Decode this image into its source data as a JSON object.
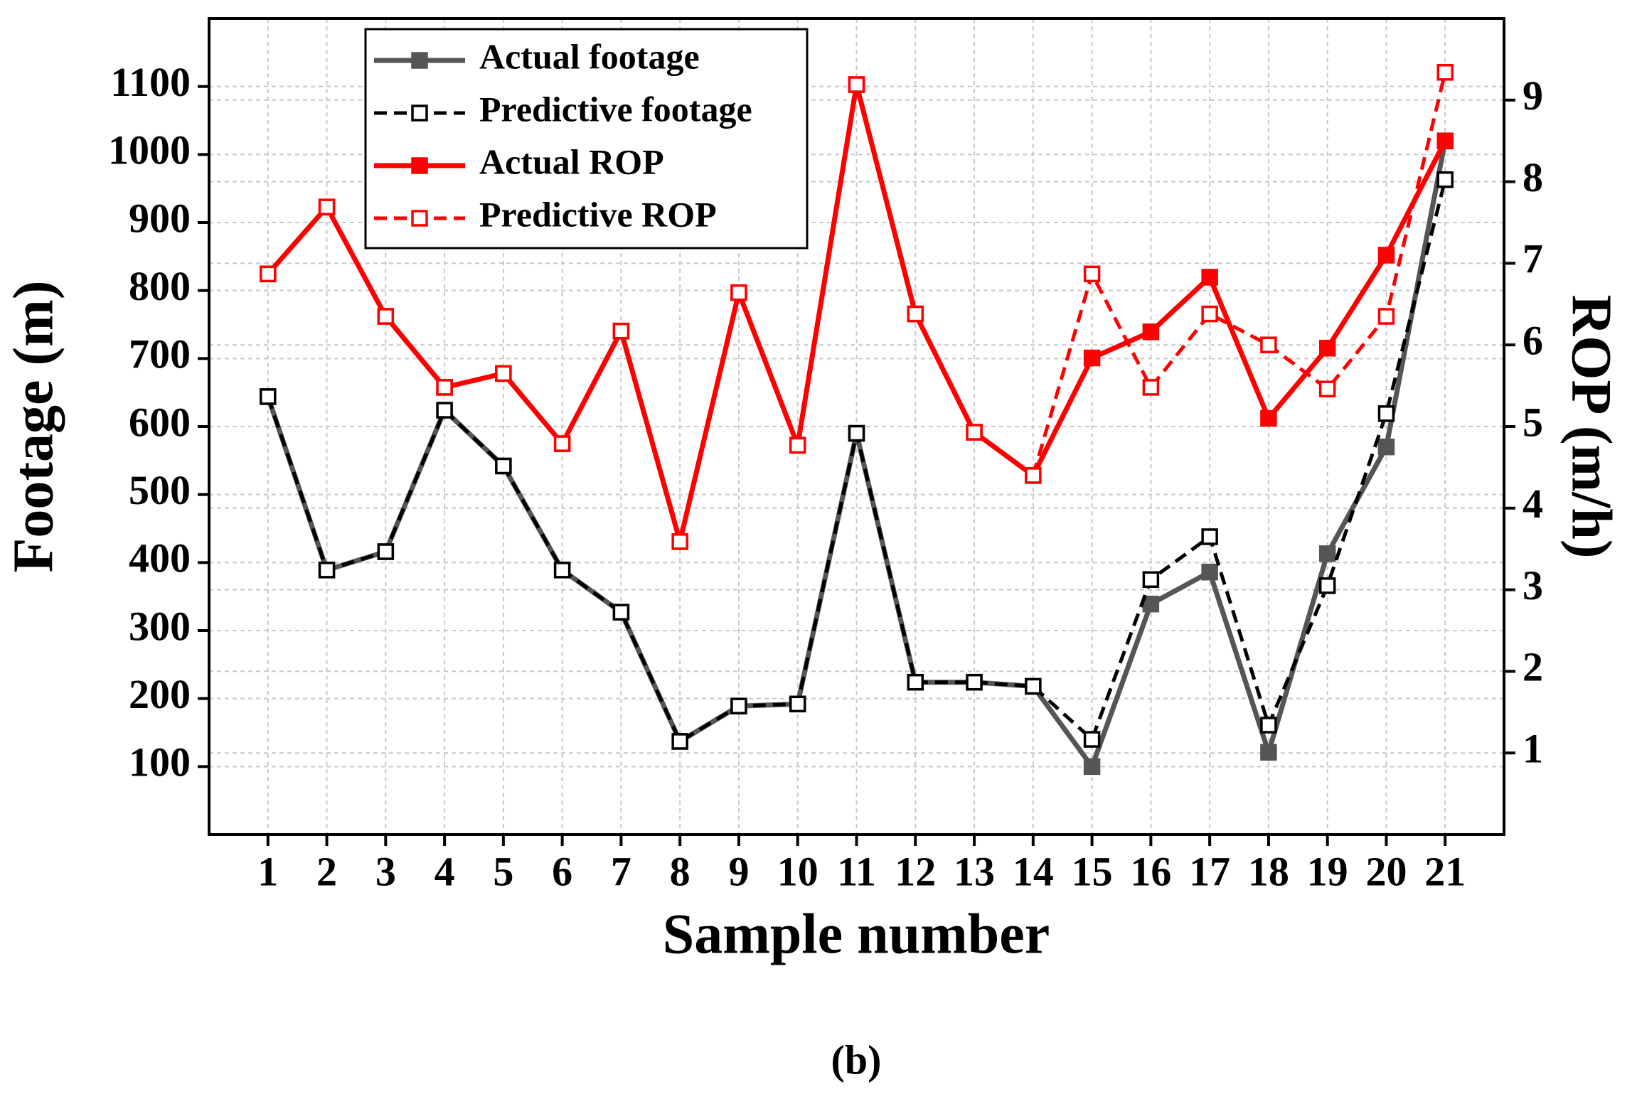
{
  "chart_data": {
    "type": "line",
    "x_label": "Sample number",
    "y_label": "Footage (m)",
    "y2_label": "ROP (m/h)",
    "caption": "(b)",
    "x": [
      1,
      2,
      3,
      4,
      5,
      6,
      7,
      8,
      9,
      10,
      11,
      12,
      13,
      14,
      15,
      16,
      17,
      18,
      19,
      20,
      21
    ],
    "xlim": [
      0,
      22
    ],
    "xticks": [
      1,
      2,
      3,
      4,
      5,
      6,
      7,
      8,
      9,
      10,
      11,
      12,
      13,
      14,
      15,
      16,
      17,
      18,
      19,
      20,
      21
    ],
    "ylim": [
      0,
      1200
    ],
    "yticks": [
      100,
      200,
      300,
      400,
      500,
      600,
      700,
      800,
      900,
      1000,
      1100
    ],
    "y2lim": [
      0,
      10
    ],
    "y2ticks": [
      1,
      2,
      3,
      4,
      5,
      6,
      7,
      8,
      9
    ],
    "y2_color": "#ff0000",
    "grid": true,
    "legend": "upper-left",
    "series": [
      {
        "name": "Actual footage",
        "color": "#555555",
        "line_style": "solid",
        "marker_fill": true,
        "values": [
          644,
          389,
          416,
          624,
          542,
          389,
          327,
          137,
          189,
          192,
          590,
          224,
          224,
          218,
          100,
          339,
          386,
          121,
          413,
          570,
          1020
        ]
      },
      {
        "name": "Predictive footage",
        "color": "#000000",
        "line_style": "dashed",
        "marker_fill": false,
        "values": [
          644,
          389,
          416,
          624,
          542,
          389,
          327,
          137,
          189,
          192,
          590,
          224,
          224,
          218,
          140,
          375,
          438,
          161,
          366,
          619,
          963
        ]
      },
      {
        "name": "Actual ROP",
        "color": "#ff0000",
        "line_style": "solid",
        "marker_fill": true,
        "axis": "y2",
        "values": [
          6.87,
          7.69,
          6.35,
          5.48,
          5.65,
          4.79,
          6.17,
          3.59,
          6.64,
          4.77,
          9.19,
          6.38,
          4.93,
          4.4,
          5.84,
          6.16,
          6.83,
          5.1,
          5.96,
          7.1,
          8.5
        ]
      },
      {
        "name": "Predictive ROP",
        "color": "#ff0000",
        "line_style": "dashed",
        "marker_fill": false,
        "axis": "y2",
        "values": [
          6.87,
          7.69,
          6.35,
          5.48,
          5.65,
          4.79,
          6.17,
          3.59,
          6.64,
          4.77,
          9.19,
          6.38,
          4.93,
          4.4,
          6.87,
          5.48,
          6.38,
          6.0,
          5.46,
          6.35,
          9.34
        ]
      }
    ]
  }
}
